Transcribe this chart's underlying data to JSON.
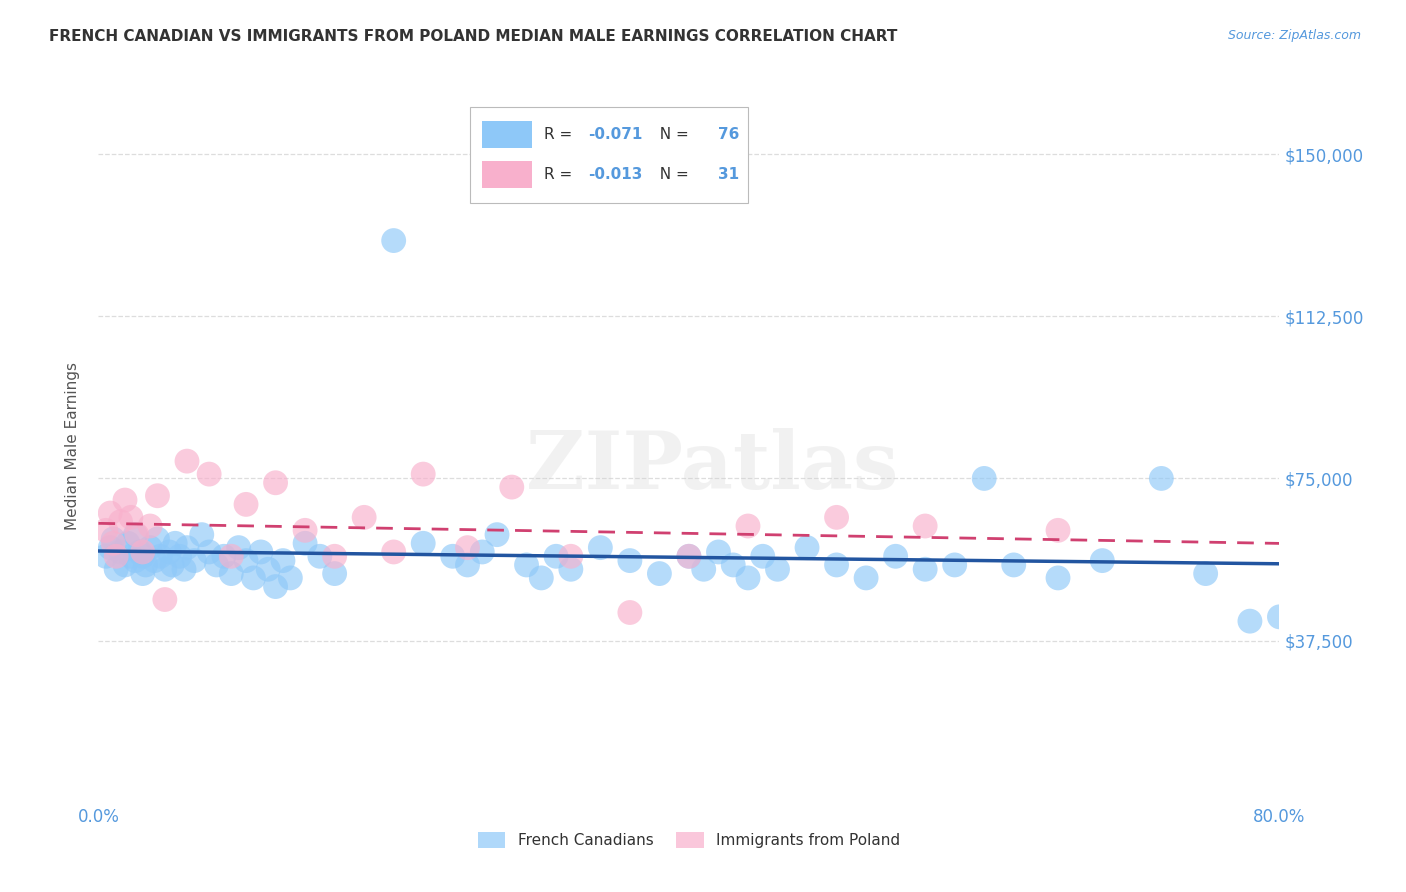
{
  "title": "FRENCH CANADIAN VS IMMIGRANTS FROM POLAND MEDIAN MALE EARNINGS CORRELATION CHART",
  "source": "Source: ZipAtlas.com",
  "ylabel": "Median Male Earnings",
  "xlim": [
    0.0,
    0.8
  ],
  "ylim": [
    0,
    165000
  ],
  "yticks": [
    37500,
    75000,
    112500,
    150000
  ],
  "ytick_labels": [
    "$37,500",
    "$75,000",
    "$112,500",
    "$150,000"
  ],
  "xticks": [
    0.0,
    0.2,
    0.4,
    0.6,
    0.8
  ],
  "xtick_labels": [
    "0.0%",
    "",
    "",
    "",
    "80.0%"
  ],
  "watermark": "ZIPatlas",
  "legend_label1": "French Canadians",
  "legend_label2": "Immigrants from Poland",
  "R1": -0.071,
  "N1": 76,
  "R2": -0.013,
  "N2": 31,
  "blue_color": "#8EC8F8",
  "pink_color": "#F8B0CC",
  "blue_line_color": "#2255A0",
  "pink_line_color": "#D04070",
  "title_color": "#333333",
  "axis_color": "#5599DD",
  "grid_color": "#DDDDDD",
  "blue_x": [
    0.005,
    0.008,
    0.01,
    0.012,
    0.015,
    0.018,
    0.02,
    0.022,
    0.025,
    0.025,
    0.028,
    0.03,
    0.03,
    0.032,
    0.035,
    0.038,
    0.04,
    0.042,
    0.045,
    0.048,
    0.05,
    0.052,
    0.055,
    0.058,
    0.06,
    0.065,
    0.07,
    0.075,
    0.08,
    0.085,
    0.09,
    0.095,
    0.1,
    0.105,
    0.11,
    0.115,
    0.12,
    0.125,
    0.13,
    0.14,
    0.15,
    0.16,
    0.2,
    0.22,
    0.24,
    0.25,
    0.26,
    0.27,
    0.29,
    0.3,
    0.31,
    0.32,
    0.34,
    0.36,
    0.38,
    0.4,
    0.41,
    0.42,
    0.43,
    0.44,
    0.45,
    0.46,
    0.48,
    0.5,
    0.52,
    0.54,
    0.56,
    0.58,
    0.6,
    0.62,
    0.65,
    0.68,
    0.72,
    0.75,
    0.78,
    0.8
  ],
  "blue_y": [
    57000,
    59000,
    61000,
    54000,
    58000,
    55000,
    60000,
    57000,
    56000,
    62000,
    58000,
    53000,
    57000,
    55000,
    59000,
    56000,
    61000,
    57000,
    54000,
    58000,
    55000,
    60000,
    57000,
    54000,
    59000,
    56000,
    62000,
    58000,
    55000,
    57000,
    53000,
    59000,
    56000,
    52000,
    58000,
    54000,
    50000,
    56000,
    52000,
    60000,
    57000,
    53000,
    130000,
    60000,
    57000,
    55000,
    58000,
    62000,
    55000,
    52000,
    57000,
    54000,
    59000,
    56000,
    53000,
    57000,
    54000,
    58000,
    55000,
    52000,
    57000,
    54000,
    59000,
    55000,
    52000,
    57000,
    54000,
    55000,
    75000,
    55000,
    52000,
    56000,
    75000,
    53000,
    42000,
    43000
  ],
  "pink_x": [
    0.005,
    0.008,
    0.01,
    0.012,
    0.015,
    0.018,
    0.022,
    0.026,
    0.03,
    0.035,
    0.04,
    0.045,
    0.06,
    0.075,
    0.09,
    0.1,
    0.12,
    0.14,
    0.16,
    0.18,
    0.2,
    0.22,
    0.25,
    0.28,
    0.32,
    0.36,
    0.4,
    0.44,
    0.5,
    0.56,
    0.65
  ],
  "pink_y": [
    63000,
    67000,
    60000,
    57000,
    65000,
    70000,
    66000,
    62000,
    58000,
    64000,
    71000,
    47000,
    79000,
    76000,
    57000,
    69000,
    74000,
    63000,
    57000,
    66000,
    58000,
    76000,
    59000,
    73000,
    57000,
    44000,
    57000,
    64000,
    66000,
    64000,
    63000
  ]
}
